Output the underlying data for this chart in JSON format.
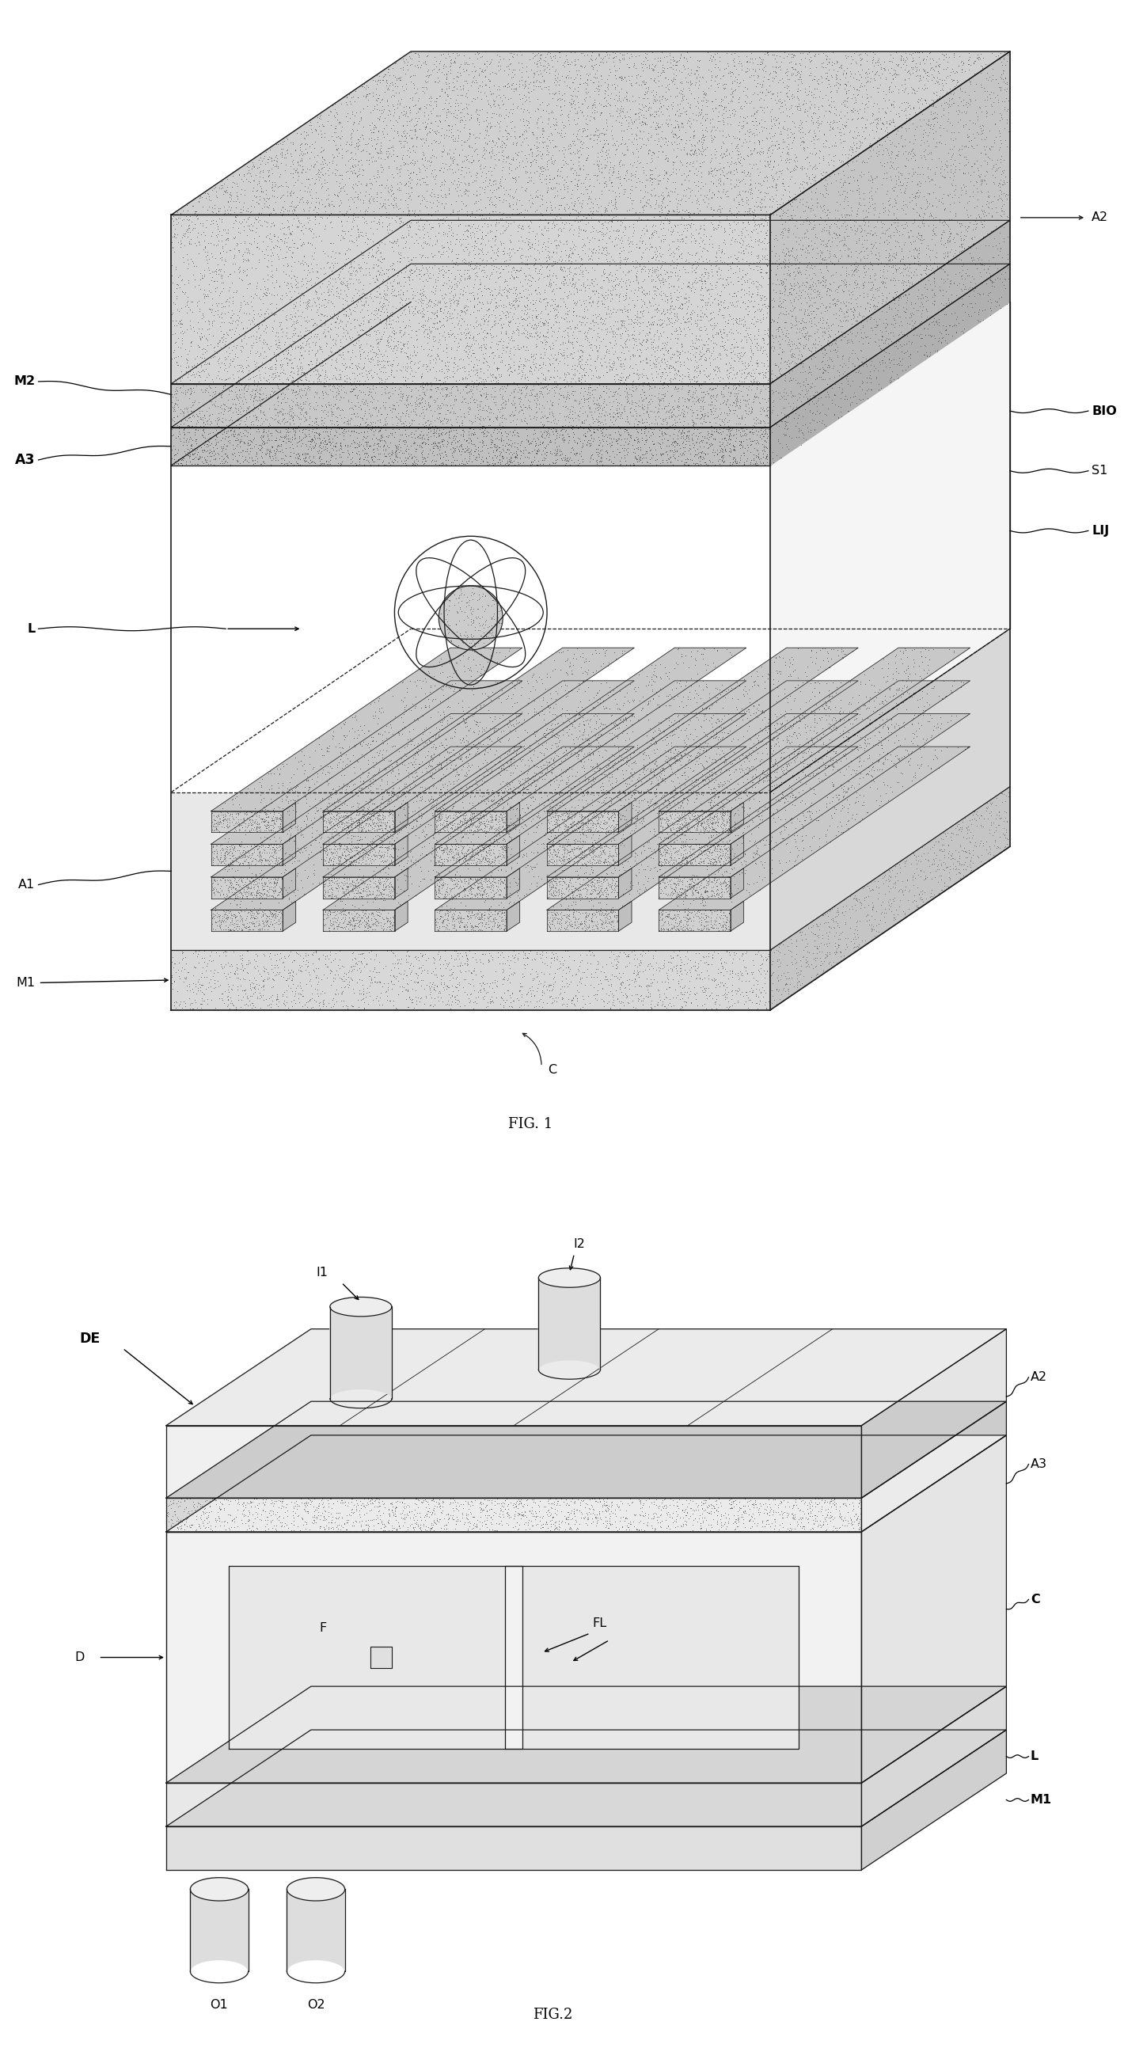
{
  "fig_width": 17.04,
  "fig_height": 25.96,
  "bg_color": "#ffffff",
  "line_color": "#1a1a1a",
  "fig1_caption": "FIG. 1",
  "fig2_caption": "FIG.2"
}
